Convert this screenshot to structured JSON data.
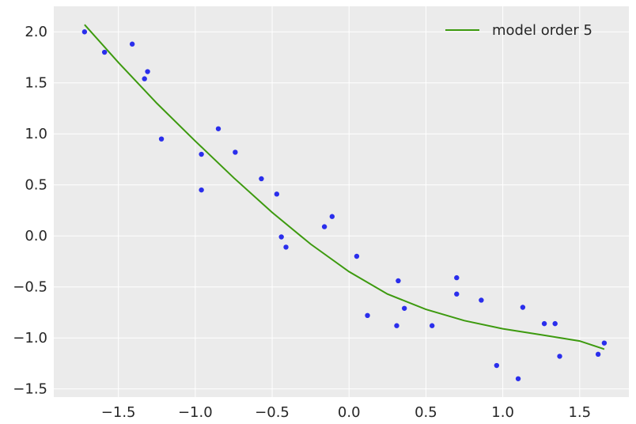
{
  "chart_data": {
    "type": "scatter",
    "xlim": [
      -1.92,
      1.82
    ],
    "ylim": [
      -1.58,
      2.25
    ],
    "x_ticks": [
      -1.5,
      -1.0,
      -0.5,
      0.0,
      0.5,
      1.0,
      1.5
    ],
    "x_tick_labels": [
      "−1.5",
      "−1.0",
      "−0.5",
      "0.0",
      "0.5",
      "1.0",
      "1.5"
    ],
    "y_ticks": [
      -1.5,
      -1.0,
      -0.5,
      0.0,
      0.5,
      1.0,
      1.5,
      2.0
    ],
    "y_tick_labels": [
      "−1.5",
      "−1.0",
      "−0.5",
      "0.0",
      "0.5",
      "1.0",
      "1.5",
      "2.0"
    ],
    "grid": true,
    "legend_position": "top-right",
    "colors": {
      "background": "#ebebeb",
      "grid": "#ffffff",
      "points": "#2a2eec",
      "line": "#3d9a0f"
    },
    "points": [
      {
        "x": -1.72,
        "y": 2.0
      },
      {
        "x": -1.59,
        "y": 1.8
      },
      {
        "x": -1.41,
        "y": 1.88
      },
      {
        "x": -1.33,
        "y": 1.54
      },
      {
        "x": -1.31,
        "y": 1.61
      },
      {
        "x": -1.22,
        "y": 0.95
      },
      {
        "x": -0.96,
        "y": 0.8
      },
      {
        "x": -0.96,
        "y": 0.45
      },
      {
        "x": -0.85,
        "y": 1.05
      },
      {
        "x": -0.74,
        "y": 0.82
      },
      {
        "x": -0.57,
        "y": 0.56
      },
      {
        "x": -0.47,
        "y": 0.41
      },
      {
        "x": -0.44,
        "y": -0.01
      },
      {
        "x": -0.41,
        "y": -0.11
      },
      {
        "x": -0.16,
        "y": 0.09
      },
      {
        "x": -0.11,
        "y": 0.19
      },
      {
        "x": 0.05,
        "y": -0.2
      },
      {
        "x": 0.12,
        "y": -0.78
      },
      {
        "x": 0.31,
        "y": -0.88
      },
      {
        "x": 0.32,
        "y": -0.44
      },
      {
        "x": 0.36,
        "y": -0.71
      },
      {
        "x": 0.54,
        "y": -0.88
      },
      {
        "x": 0.7,
        "y": -0.41
      },
      {
        "x": 0.7,
        "y": -0.57
      },
      {
        "x": 0.86,
        "y": -0.63
      },
      {
        "x": 0.96,
        "y": -1.27
      },
      {
        "x": 1.1,
        "y": -1.4
      },
      {
        "x": 1.13,
        "y": -0.7
      },
      {
        "x": 1.27,
        "y": -0.86
      },
      {
        "x": 1.34,
        "y": -0.86
      },
      {
        "x": 1.37,
        "y": -1.18
      },
      {
        "x": 1.62,
        "y": -1.16
      },
      {
        "x": 1.66,
        "y": -1.05
      }
    ],
    "series": [
      {
        "name": "model order 5",
        "x": [
          -1.72,
          -1.5,
          -1.25,
          -1.0,
          -0.75,
          -0.5,
          -0.25,
          0.0,
          0.25,
          0.5,
          0.75,
          1.0,
          1.25,
          1.5,
          1.66
        ],
        "y": [
          2.07,
          1.7,
          1.3,
          0.93,
          0.57,
          0.23,
          -0.08,
          -0.35,
          -0.57,
          -0.72,
          -0.83,
          -0.91,
          -0.97,
          -1.03,
          -1.11
        ]
      }
    ]
  }
}
